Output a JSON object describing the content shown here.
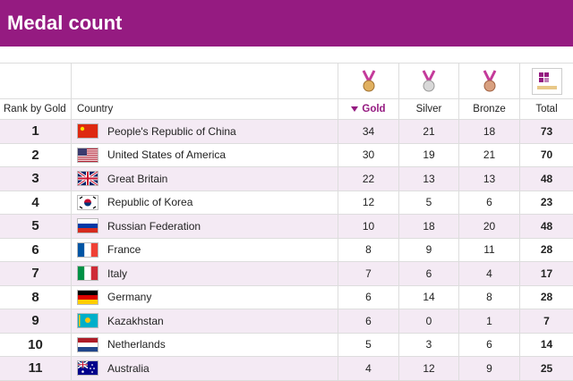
{
  "header": {
    "title": "Medal count"
  },
  "table": {
    "columns": [
      "Rank by Gold",
      "Country",
      "Gold",
      "Silver",
      "Bronze",
      "Total"
    ],
    "rows": [
      [
        1,
        "People's Republic of China",
        34,
        21,
        18,
        73
      ],
      [
        2,
        "United States of America",
        30,
        19,
        21,
        70
      ],
      [
        3,
        "Great Britain",
        22,
        13,
        13,
        48
      ],
      [
        4,
        "Republic of Korea",
        12,
        5,
        6,
        23
      ],
      [
        5,
        "Russian Federation",
        10,
        18,
        20,
        48
      ],
      [
        6,
        "France",
        8,
        9,
        11,
        28
      ],
      [
        7,
        "Italy",
        7,
        6,
        4,
        17
      ],
      [
        8,
        "Germany",
        6,
        14,
        8,
        28
      ],
      [
        9,
        "Kazakhstan",
        6,
        0,
        1,
        7
      ],
      [
        10,
        "Netherlands",
        5,
        3,
        6,
        14
      ],
      [
        11,
        "Australia",
        4,
        12,
        9,
        25
      ]
    ]
  }
}
